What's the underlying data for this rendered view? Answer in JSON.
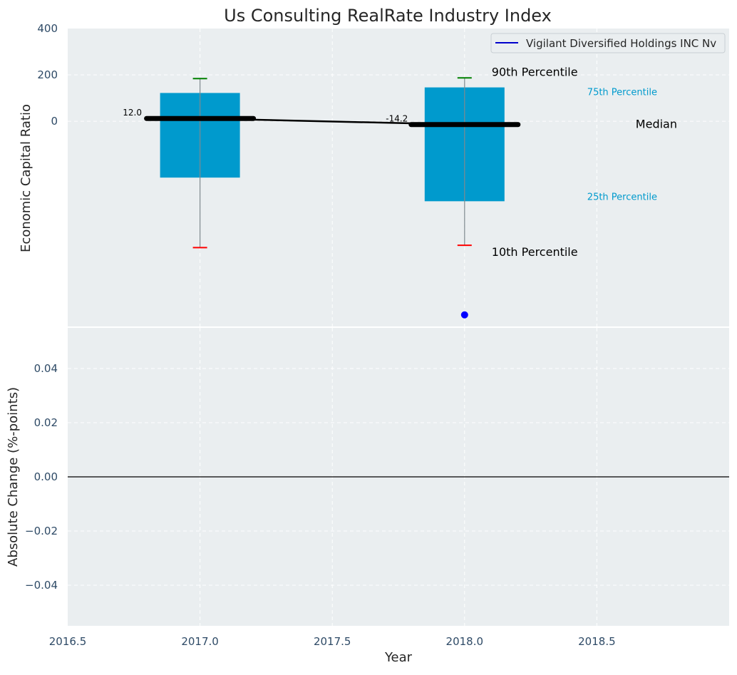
{
  "chart_data": {
    "type": "box",
    "title": "Us Consulting RealRate Industry Index",
    "xlabel": "Year",
    "x_ticks": [
      "2016.5",
      "2017.0",
      "2017.5",
      "2018.0",
      "2018.5"
    ],
    "xlim": [
      2016.5,
      2019.0
    ],
    "panels": {
      "top": {
        "ylabel": "Economic Capital Ratio",
        "ylim": [
          -885,
          400
        ],
        "y_ticks": [
          "400",
          "200",
          "0"
        ],
        "boxes": [
          {
            "year": 2017.0,
            "p10": -545,
            "p25": -243,
            "median": 12.0,
            "p75": 122,
            "p90": 184,
            "median_label": "12.0"
          },
          {
            "year": 2018.0,
            "p10": -535,
            "p25": -345,
            "median": -14.2,
            "p75": 146,
            "p90": 187,
            "median_label": "-14.2"
          }
        ],
        "company_points": [
          {
            "year": 2018.0,
            "value": -835
          }
        ],
        "box_color": "#009acd",
        "p90_cap_color": "#008000",
        "p10_cap_color": "#ff0000",
        "company_color": "#0000ff",
        "annotations": {
          "p90": "90th Percentile",
          "p75": "75th Percentile",
          "median": "Median",
          "p25": "25th Percentile",
          "p10": "10th Percentile"
        },
        "legend": {
          "label": "Vigilant Diversified Holdings INC Nv",
          "position": "upper right"
        }
      },
      "bottom": {
        "ylabel": "Absolute Change (%-points)",
        "ylim": [
          -0.055,
          0.055
        ],
        "y_ticks": [
          "0.04",
          "0.02",
          "0.00",
          "−0.02",
          "−0.04"
        ],
        "y_values": [
          0.04,
          0.02,
          0.0,
          -0.02,
          -0.04
        ],
        "zero_line": true
      }
    }
  }
}
